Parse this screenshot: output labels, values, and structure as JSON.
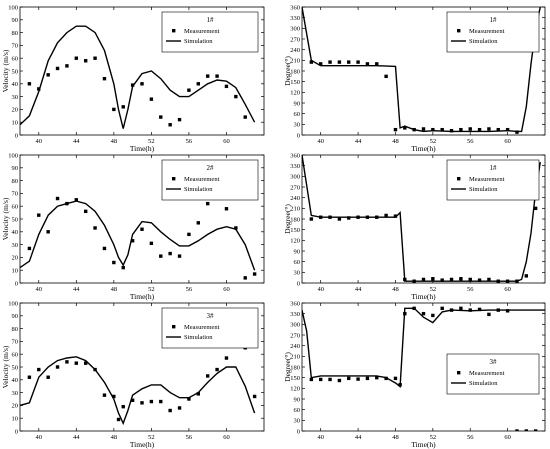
{
  "chart_data": [
    {
      "type": "scatter",
      "title": "1#",
      "xlabel": "Time(h)",
      "ylabel": "Velocity (m/s)",
      "xlim": [
        38,
        64
      ],
      "ylim": [
        0,
        100
      ],
      "xticks": [
        40,
        44,
        48,
        52,
        56,
        60
      ],
      "yticks": [
        0,
        10,
        20,
        30,
        40,
        50,
        60,
        70,
        80,
        90,
        100
      ],
      "legend": [
        "Measurement",
        "Simulation"
      ],
      "legend_position": "top-right",
      "series": [
        {
          "name": "Measurement",
          "kind": "scatter",
          "x": [
            39,
            40,
            41,
            42,
            43,
            44,
            45,
            46,
            47,
            48,
            49,
            50,
            51,
            52,
            53,
            54,
            55,
            56,
            57,
            58,
            59,
            60,
            61,
            62
          ],
          "y": [
            40,
            36,
            47,
            52,
            54,
            60,
            58,
            60,
            44,
            20,
            22,
            39,
            40,
            28,
            14,
            8,
            12,
            35,
            40,
            46,
            46,
            38,
            30,
            14
          ]
        },
        {
          "name": "Simulation",
          "kind": "line",
          "x": [
            38,
            39,
            40,
            41,
            42,
            43,
            44,
            45,
            46,
            47,
            48,
            48.5,
            49,
            49.5,
            50,
            51,
            52,
            53,
            54,
            55,
            56,
            57,
            58,
            59,
            60,
            61,
            62,
            63
          ],
          "y": [
            8,
            15,
            34,
            58,
            72,
            80,
            85,
            85,
            80,
            66,
            40,
            20,
            5,
            20,
            38,
            48,
            50,
            44,
            35,
            30,
            30,
            35,
            40,
            43,
            42,
            37,
            24,
            10
          ]
        }
      ]
    },
    {
      "type": "scatter",
      "title": "1#",
      "xlabel": "Time(h)",
      "ylabel": "Degree(°)",
      "xlim": [
        38,
        64
      ],
      "ylim": [
        0,
        360
      ],
      "xticks": [
        40,
        44,
        48,
        52,
        56,
        60
      ],
      "yticks": [
        0,
        30,
        60,
        90,
        120,
        150,
        180,
        210,
        240,
        270,
        300,
        330,
        360
      ],
      "legend": [
        "Measurement",
        "Simulation"
      ],
      "legend_position": "top-right",
      "series": [
        {
          "name": "Measurement",
          "kind": "scatter",
          "x": [
            39,
            40,
            41,
            42,
            43,
            44,
            45,
            46,
            47,
            48,
            49,
            50,
            51,
            52,
            53,
            54,
            55,
            56,
            57,
            58,
            59,
            60,
            61,
            62,
            63
          ],
          "y": [
            205,
            200,
            205,
            205,
            205,
            205,
            200,
            200,
            165,
            15,
            20,
            15,
            17,
            15,
            15,
            12,
            15,
            17,
            15,
            17,
            15,
            15,
            8,
            260,
            240
          ]
        },
        {
          "name": "Simulation",
          "kind": "line",
          "x": [
            38,
            39,
            40,
            42,
            44,
            46,
            48,
            48.5,
            49,
            50,
            51,
            52,
            54,
            56,
            58,
            60,
            61,
            61.5,
            62,
            62.5,
            63,
            63.5
          ],
          "y": [
            360,
            210,
            195,
            195,
            195,
            195,
            193,
            20,
            25,
            15,
            10,
            12,
            10,
            10,
            10,
            12,
            10,
            10,
            80,
            200,
            300,
            360
          ]
        }
      ]
    },
    {
      "type": "scatter",
      "title": "2#",
      "xlabel": "Time(h)",
      "ylabel": "Velocity (m/s)",
      "xlim": [
        38,
        64
      ],
      "ylim": [
        0,
        100
      ],
      "xticks": [
        40,
        44,
        48,
        52,
        56,
        60
      ],
      "yticks": [
        0,
        10,
        20,
        30,
        40,
        50,
        60,
        70,
        80,
        90,
        100
      ],
      "legend": [
        "Measurement",
        "Simulation"
      ],
      "legend_position": "top-right",
      "series": [
        {
          "name": "Measurement",
          "kind": "scatter",
          "x": [
            39,
            40,
            41,
            42,
            43,
            44,
            45,
            46,
            47,
            48,
            49,
            50,
            51,
            52,
            53,
            54,
            55,
            56,
            57,
            58,
            59,
            60,
            61,
            62,
            63
          ],
          "y": [
            27,
            53,
            40,
            66,
            62,
            65,
            56,
            43,
            27,
            16,
            12,
            33,
            42,
            31,
            21,
            23,
            21,
            38,
            47,
            62,
            70,
            58,
            43,
            4,
            7
          ]
        },
        {
          "name": "Simulation",
          "kind": "line",
          "x": [
            38,
            39,
            40,
            41,
            42,
            43,
            44,
            45,
            46,
            47,
            48,
            48.5,
            49,
            49.5,
            50,
            51,
            52,
            53,
            54,
            55,
            56,
            57,
            58,
            59,
            60,
            61,
            62,
            63
          ],
          "y": [
            12,
            17,
            38,
            53,
            60,
            62,
            64,
            62,
            56,
            45,
            30,
            20,
            14,
            22,
            38,
            48,
            47,
            40,
            34,
            29,
            29,
            33,
            38,
            42,
            44,
            42,
            30,
            10
          ]
        }
      ]
    },
    {
      "type": "scatter",
      "title": "1#",
      "xlabel": "Time(h)",
      "ylabel": "Degree(°)",
      "xlim": [
        38,
        64
      ],
      "ylim": [
        0,
        360
      ],
      "xticks": [
        40,
        44,
        48,
        52,
        56,
        60
      ],
      "yticks": [
        0,
        30,
        60,
        90,
        120,
        150,
        180,
        210,
        240,
        270,
        300,
        330,
        360
      ],
      "legend": [
        "Measurement",
        "Simulation"
      ],
      "legend_position": "top-right",
      "series": [
        {
          "name": "Measurement",
          "kind": "scatter",
          "x": [
            39,
            40,
            41,
            42,
            43,
            44,
            45,
            46,
            47,
            48,
            49,
            50,
            51,
            52,
            53,
            54,
            55,
            56,
            57,
            58,
            59,
            60,
            61,
            62,
            63
          ],
          "y": [
            180,
            185,
            185,
            180,
            183,
            185,
            185,
            185,
            190,
            188,
            10,
            5,
            10,
            12,
            8,
            10,
            12,
            10,
            8,
            10,
            5,
            5,
            5,
            20,
            210
          ]
        },
        {
          "name": "Simulation",
          "kind": "line",
          "x": [
            38,
            39,
            40,
            42,
            44,
            46,
            48,
            48.5,
            49,
            50,
            52,
            54,
            56,
            58,
            60,
            61,
            61.5,
            62,
            62.5,
            63,
            63.5
          ],
          "y": [
            360,
            190,
            185,
            185,
            185,
            185,
            185,
            198,
            5,
            5,
            5,
            5,
            5,
            5,
            5,
            5,
            10,
            60,
            140,
            260,
            340
          ]
        }
      ]
    },
    {
      "type": "scatter",
      "title": "3#",
      "xlabel": "Time(h)",
      "ylabel": "Velocity (m/s)",
      "xlim": [
        38,
        64
      ],
      "ylim": [
        0,
        100
      ],
      "xticks": [
        40,
        44,
        48,
        52,
        56,
        60
      ],
      "yticks": [
        0,
        10,
        20,
        30,
        40,
        50,
        60,
        70,
        80,
        90,
        100
      ],
      "legend": [
        "Measurement",
        "Simulation"
      ],
      "legend_position": "top-right",
      "series": [
        {
          "name": "Measurement",
          "kind": "scatter",
          "x": [
            39,
            40,
            41,
            42,
            43,
            44,
            45,
            46,
            47,
            48,
            48.5,
            49,
            50,
            51,
            52,
            53,
            54,
            55,
            56,
            57,
            58,
            59,
            60,
            61,
            62,
            63
          ],
          "y": [
            42,
            48,
            42,
            50,
            54,
            53,
            53,
            48,
            28,
            27,
            9,
            19,
            24,
            22,
            23,
            23,
            16,
            18,
            25,
            29,
            43,
            48,
            57,
            71,
            65,
            27
          ]
        },
        {
          "name": "Simulation",
          "kind": "line",
          "x": [
            38,
            39,
            40,
            41,
            42,
            43,
            44,
            45,
            46,
            47,
            48,
            48.5,
            49,
            49.5,
            50,
            51,
            52,
            53,
            54,
            55,
            56,
            57,
            58,
            59,
            60,
            61,
            62,
            63
          ],
          "y": [
            20,
            22,
            42,
            50,
            55,
            57,
            58,
            55,
            48,
            38,
            25,
            14,
            6,
            16,
            28,
            33,
            36,
            36,
            30,
            26,
            26,
            30,
            38,
            45,
            50,
            50,
            35,
            14
          ]
        }
      ]
    },
    {
      "type": "scatter",
      "title": "3#",
      "xlabel": "Time(h)",
      "ylabel": "Degree(°)",
      "xlim": [
        38,
        64
      ],
      "ylim": [
        0,
        360
      ],
      "xticks": [
        40,
        44,
        48,
        52,
        56,
        60
      ],
      "yticks": [
        0,
        30,
        60,
        90,
        120,
        150,
        180,
        210,
        240,
        270,
        300,
        330,
        360
      ],
      "legend": [
        "Measurement",
        "Simulation"
      ],
      "legend_position": "right",
      "series": [
        {
          "name": "Measurement",
          "kind": "scatter",
          "x": [
            39,
            40,
            41,
            42,
            43,
            44,
            45,
            46,
            47,
            48,
            48.5,
            49,
            50,
            51,
            52,
            53,
            54,
            55,
            56,
            57,
            58,
            59,
            60,
            61,
            62,
            63
          ],
          "y": [
            145,
            145,
            145,
            142,
            148,
            146,
            148,
            150,
            148,
            148,
            130,
            330,
            345,
            330,
            325,
            345,
            340,
            345,
            340,
            342,
            328,
            340,
            338,
            0,
            0,
            0
          ]
        },
        {
          "name": "Simulation",
          "kind": "line",
          "x": [
            38,
            38.5,
            39,
            40,
            42,
            44,
            46,
            47,
            48,
            48.5,
            49,
            50,
            51,
            52,
            53,
            54,
            56,
            58,
            60,
            62,
            63,
            64
          ],
          "y": [
            340,
            280,
            150,
            155,
            155,
            155,
            155,
            150,
            135,
            125,
            345,
            345,
            320,
            305,
            335,
            340,
            338,
            340,
            340,
            340,
            340,
            340
          ]
        }
      ]
    }
  ]
}
